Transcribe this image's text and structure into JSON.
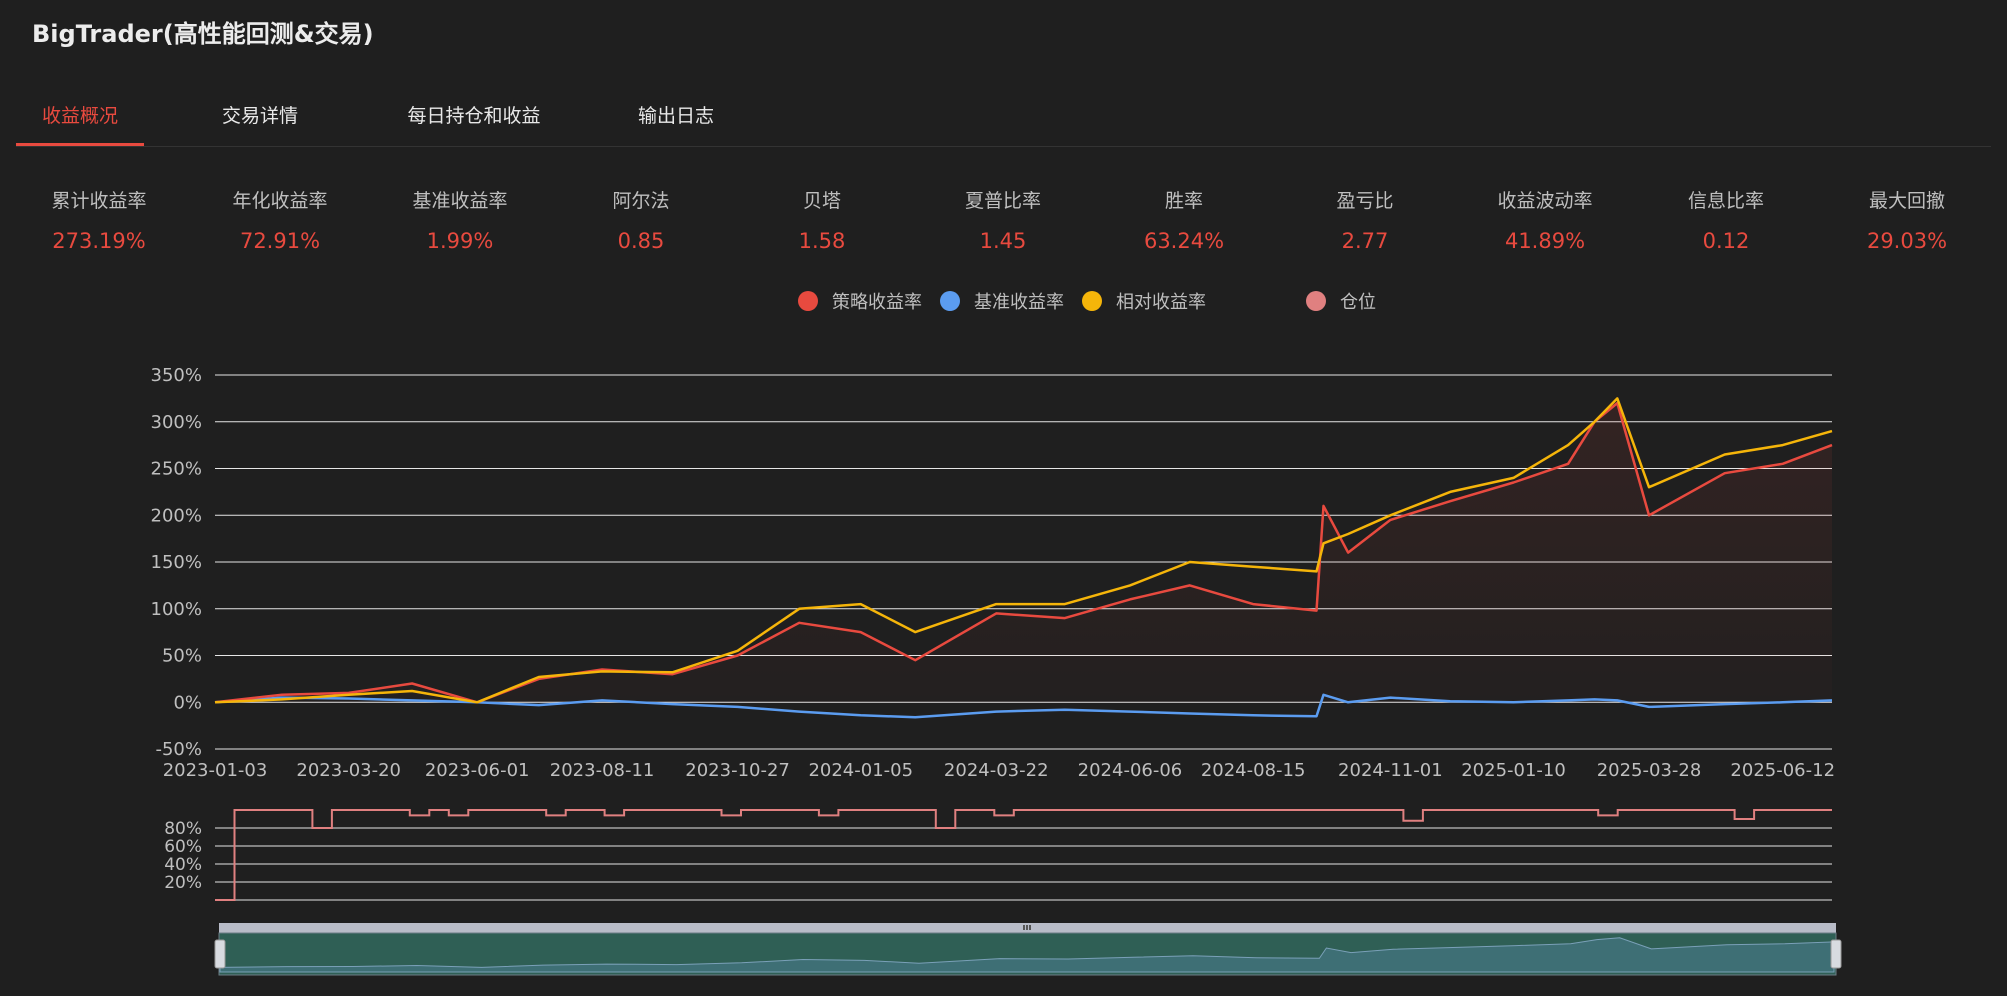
{
  "app": {
    "title": "BigTrader(高性能回测&交易)"
  },
  "tabs": [
    {
      "label": "收益概况",
      "active": true
    },
    {
      "label": "交易详情",
      "active": false
    },
    {
      "label": "每日持仓和收益",
      "active": false
    },
    {
      "label": "输出日志",
      "active": false
    }
  ],
  "metrics": [
    {
      "label": "累计收益率",
      "value": "273.19%"
    },
    {
      "label": "年化收益率",
      "value": "72.91%"
    },
    {
      "label": "基准收益率",
      "value": "1.99%"
    },
    {
      "label": "阿尔法",
      "value": "0.85"
    },
    {
      "label": "贝塔",
      "value": "1.58"
    },
    {
      "label": "夏普比率",
      "value": "1.45"
    },
    {
      "label": "胜率",
      "value": "63.24%"
    },
    {
      "label": "盈亏比",
      "value": "2.77"
    },
    {
      "label": "收益波动率",
      "value": "41.89%"
    },
    {
      "label": "信息比率",
      "value": "0.12"
    },
    {
      "label": "最大回撤",
      "value": "29.03%"
    }
  ],
  "legend": [
    {
      "label": "策略收益率",
      "color": "#e84a3f"
    },
    {
      "label": "基准收益率",
      "color": "#5b9cf0"
    },
    {
      "label": "相对收益率",
      "color": "#f5b50a"
    },
    {
      "label": "仓位",
      "color": "#e08080"
    }
  ],
  "chart_data": [
    {
      "type": "line",
      "ylim": [
        -50,
        350
      ],
      "y_ticks": [
        "350%",
        "300%",
        "250%",
        "200%",
        "150%",
        "100%",
        "50%",
        "0%",
        "-50%"
      ],
      "y_tick_values": [
        350,
        300,
        250,
        200,
        150,
        100,
        50,
        0,
        -50
      ],
      "x_ticks": [
        "2023-01-03",
        "2023-03-20",
        "2023-06-01",
        "2023-08-11",
        "2023-10-27",
        "2024-01-05",
        "2024-03-22",
        "2024-06-06",
        "2024-08-15",
        "2024-11-01",
        "2025-01-10",
        "2025-03-28",
        "2025-06-12"
      ],
      "x": [
        "2023-01-03",
        "2023-02-10",
        "2023-03-20",
        "2023-04-25",
        "2023-06-01",
        "2023-07-06",
        "2023-08-11",
        "2023-09-20",
        "2023-10-27",
        "2023-12-01",
        "2024-01-05",
        "2024-02-05",
        "2024-03-22",
        "2024-04-30",
        "2024-06-06",
        "2024-07-10",
        "2024-08-15",
        "2024-09-20",
        "2024-09-24",
        "2024-10-08",
        "2024-11-01",
        "2024-12-05",
        "2025-01-10",
        "2025-02-10",
        "2025-02-25",
        "2025-03-10",
        "2025-03-28",
        "2025-05-10",
        "2025-06-12",
        "2025-07-10"
      ],
      "series": [
        {
          "name": "策略收益率",
          "color": "#e84a3f",
          "values": [
            0,
            8,
            10,
            20,
            0,
            25,
            35,
            30,
            50,
            85,
            75,
            45,
            95,
            90,
            110,
            125,
            105,
            98,
            210,
            160,
            195,
            215,
            235,
            255,
            300,
            320,
            200,
            245,
            255,
            275
          ]
        },
        {
          "name": "基准收益率",
          "color": "#5b9cf0",
          "values": [
            0,
            5,
            4,
            2,
            0,
            -3,
            2,
            -2,
            -5,
            -10,
            -14,
            -16,
            -10,
            -8,
            -10,
            -12,
            -14,
            -15,
            8,
            0,
            5,
            1,
            0,
            2,
            3,
            2,
            -5,
            -2,
            0,
            2
          ]
        },
        {
          "name": "相对收益率",
          "color": "#f5b50a",
          "values": [
            0,
            3,
            8,
            12,
            0,
            27,
            33,
            32,
            55,
            100,
            105,
            75,
            105,
            105,
            125,
            150,
            145,
            140,
            170,
            180,
            200,
            225,
            240,
            275,
            300,
            325,
            230,
            265,
            275,
            290
          ]
        }
      ]
    },
    {
      "type": "line",
      "ylim": [
        0,
        100
      ],
      "y_ticks": [
        "80%",
        "60%",
        "40%",
        "20%"
      ],
      "y_tick_values": [
        80,
        60,
        40,
        20
      ],
      "series": [
        {
          "name": "仓位",
          "color": "#e08080",
          "values": [
            0,
            100,
            100,
            100,
            100,
            80,
            100,
            100,
            100,
            100,
            94,
            100,
            94,
            100,
            100,
            100,
            100,
            94,
            100,
            100,
            94,
            100,
            100,
            100,
            100,
            100,
            94,
            100,
            100,
            100,
            100,
            94,
            100,
            100,
            100,
            100,
            100,
            80,
            100,
            100,
            94,
            100,
            100,
            100,
            100,
            100,
            100,
            100,
            100,
            100,
            100,
            100,
            100,
            100,
            100,
            100,
            100,
            100,
            100,
            100,
            100,
            88,
            100,
            100,
            100,
            100,
            100,
            100,
            100,
            100,
            100,
            94,
            100,
            100,
            100,
            100,
            100,
            100,
            90,
            100,
            100,
            100,
            100,
            100
          ]
        }
      ]
    }
  ]
}
